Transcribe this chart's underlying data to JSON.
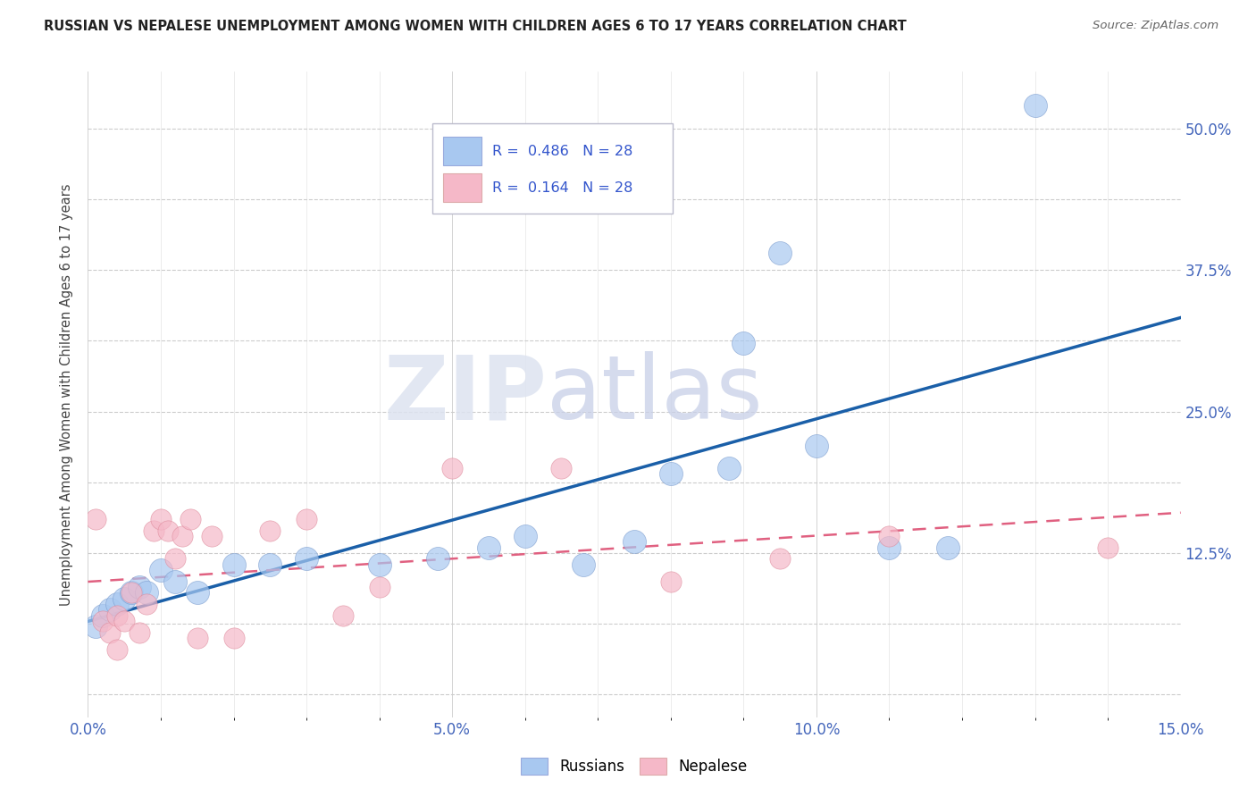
{
  "title": "RUSSIAN VS NEPALESE UNEMPLOYMENT AMONG WOMEN WITH CHILDREN AGES 6 TO 17 YEARS CORRELATION CHART",
  "source": "Source: ZipAtlas.com",
  "ylabel": "Unemployment Among Women with Children Ages 6 to 17 years",
  "xlim": [
    0.0,
    0.15
  ],
  "ylim": [
    -0.02,
    0.55
  ],
  "russian_R": "0.486",
  "russian_N": "28",
  "nepalese_R": "0.164",
  "nepalese_N": "28",
  "russian_color": "#a8c8f0",
  "nepalese_color": "#f5b8c8",
  "russian_line_color": "#1a5fa8",
  "nepalese_line_color": "#e06080",
  "watermark_color": "#d8dff0",
  "russian_points": [
    [
      0.001,
      0.06
    ],
    [
      0.002,
      0.07
    ],
    [
      0.003,
      0.075
    ],
    [
      0.004,
      0.08
    ],
    [
      0.005,
      0.085
    ],
    [
      0.006,
      0.09
    ],
    [
      0.007,
      0.095
    ],
    [
      0.008,
      0.09
    ],
    [
      0.01,
      0.11
    ],
    [
      0.012,
      0.1
    ],
    [
      0.015,
      0.09
    ],
    [
      0.02,
      0.115
    ],
    [
      0.025,
      0.115
    ],
    [
      0.03,
      0.12
    ],
    [
      0.04,
      0.115
    ],
    [
      0.048,
      0.12
    ],
    [
      0.055,
      0.13
    ],
    [
      0.06,
      0.14
    ],
    [
      0.068,
      0.115
    ],
    [
      0.075,
      0.135
    ],
    [
      0.08,
      0.195
    ],
    [
      0.088,
      0.2
    ],
    [
      0.09,
      0.31
    ],
    [
      0.095,
      0.39
    ],
    [
      0.1,
      0.22
    ],
    [
      0.11,
      0.13
    ],
    [
      0.118,
      0.13
    ],
    [
      0.13,
      0.52
    ]
  ],
  "nepalese_points": [
    [
      0.001,
      0.155
    ],
    [
      0.002,
      0.065
    ],
    [
      0.003,
      0.055
    ],
    [
      0.004,
      0.04
    ],
    [
      0.004,
      0.07
    ],
    [
      0.005,
      0.065
    ],
    [
      0.006,
      0.09
    ],
    [
      0.007,
      0.055
    ],
    [
      0.008,
      0.08
    ],
    [
      0.009,
      0.145
    ],
    [
      0.01,
      0.155
    ],
    [
      0.011,
      0.145
    ],
    [
      0.012,
      0.12
    ],
    [
      0.013,
      0.14
    ],
    [
      0.014,
      0.155
    ],
    [
      0.015,
      0.05
    ],
    [
      0.017,
      0.14
    ],
    [
      0.02,
      0.05
    ],
    [
      0.025,
      0.145
    ],
    [
      0.03,
      0.155
    ],
    [
      0.035,
      0.07
    ],
    [
      0.04,
      0.095
    ],
    [
      0.05,
      0.2
    ],
    [
      0.065,
      0.2
    ],
    [
      0.08,
      0.1
    ],
    [
      0.095,
      0.12
    ],
    [
      0.11,
      0.14
    ],
    [
      0.14,
      0.13
    ]
  ],
  "right_ytick_positions": [
    0.125,
    0.25,
    0.375,
    0.5
  ],
  "right_ytick_labels": [
    "12.5%",
    "25.0%",
    "37.5%",
    "50.0%"
  ],
  "xtick_positions": [
    0.0,
    0.025,
    0.05,
    0.075,
    0.1,
    0.125,
    0.15
  ],
  "xtick_labels": [
    "0.0%",
    "",
    "",
    "",
    "",
    "",
    "15.0%"
  ],
  "grid_ytick_positions": [
    0.0,
    0.0625,
    0.125,
    0.1875,
    0.25,
    0.3125,
    0.375,
    0.4375,
    0.5
  ]
}
